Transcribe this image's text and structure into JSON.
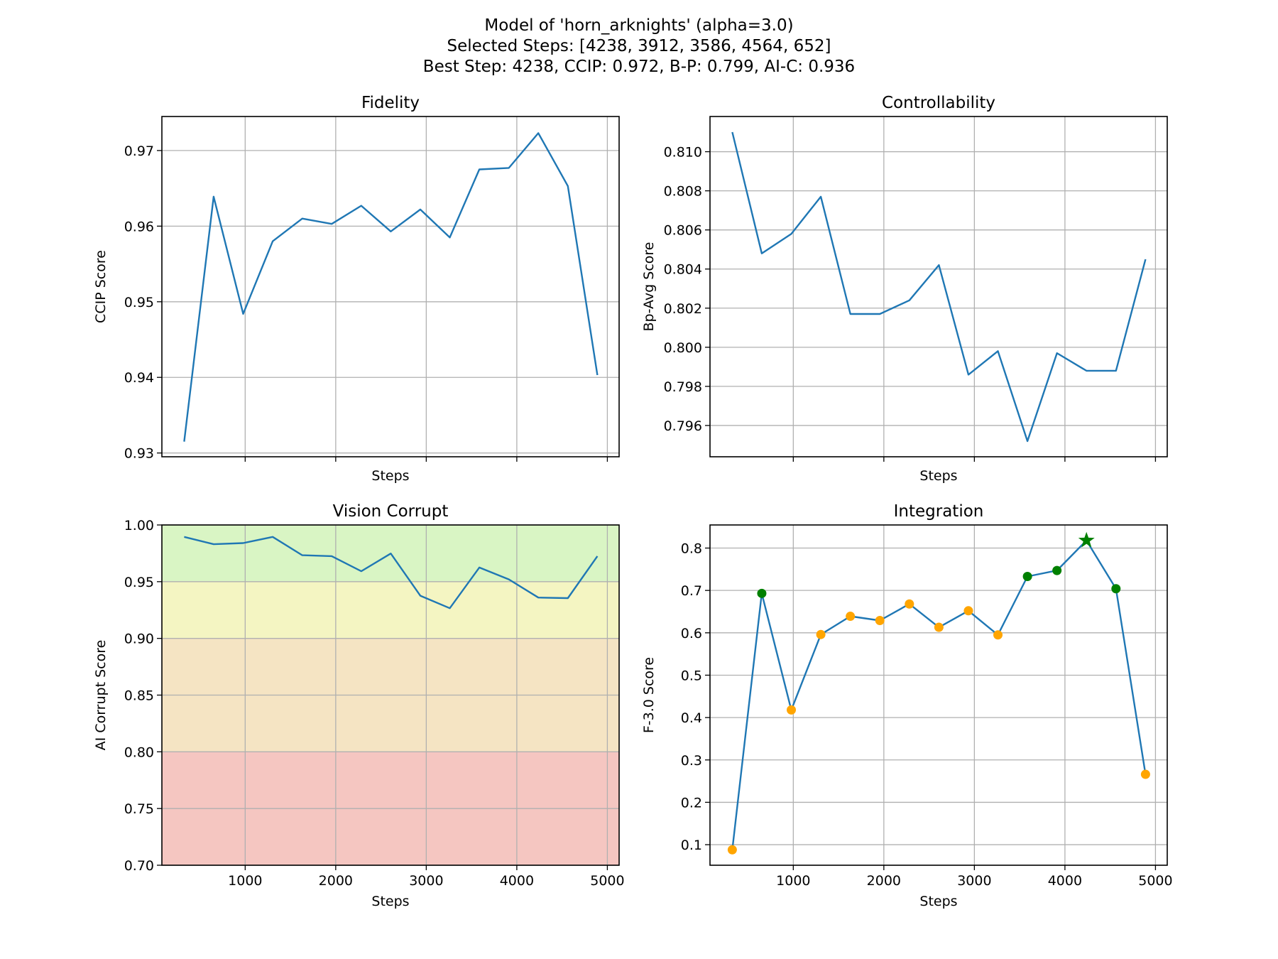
{
  "title_lines": [
    "Model of 'horn_arknights' (alpha=3.0)",
    "Selected Steps: [4238, 3912, 3586, 4564, 652]",
    "Best Step: 4238, CCIP: 0.972, B-P: 0.799, AI-C: 0.936"
  ],
  "colors": {
    "line": "#1f77b4",
    "grid": "#b0b0b0",
    "point_default": "#FFA500",
    "point_selected": "#008000",
    "best_marker": "#008000",
    "bands": [
      "#d9f5c4",
      "#f4f5c2",
      "#f5e4c3",
      "#f5c6c1"
    ]
  },
  "chart_data": [
    {
      "type": "line",
      "title": "Fidelity",
      "xlabel": "Steps",
      "ylabel": "CCIP Score",
      "x": [
        326,
        652,
        978,
        1304,
        1630,
        1956,
        2282,
        2608,
        2934,
        3260,
        3586,
        3912,
        4238,
        4564,
        4890
      ],
      "y": [
        0.9315,
        0.9639,
        0.9484,
        0.958,
        0.961,
        0.9603,
        0.9627,
        0.9593,
        0.9622,
        0.9585,
        0.9675,
        0.9677,
        0.9723,
        0.9653,
        0.9403
      ],
      "xlim": [
        80,
        5130
      ],
      "ylim": [
        0.9295,
        0.9745
      ],
      "xticks": [
        1000,
        2000,
        3000,
        4000,
        5000
      ],
      "xtick_labels_visible": false,
      "yticks": [
        0.93,
        0.94,
        0.95,
        0.96,
        0.97
      ],
      "ytick_labels": [
        "0.93",
        "0.94",
        "0.95",
        "0.96",
        "0.97"
      ],
      "grid": true
    },
    {
      "type": "line",
      "title": "Controllability",
      "xlabel": "Steps",
      "ylabel": "Bp-Avg Score",
      "x": [
        326,
        652,
        978,
        1304,
        1630,
        1956,
        2282,
        2608,
        2934,
        3260,
        3586,
        3912,
        4238,
        4564,
        4890
      ],
      "y": [
        0.811,
        0.8048,
        0.8058,
        0.8077,
        0.8017,
        0.8017,
        0.8024,
        0.8042,
        0.7986,
        0.7998,
        0.7952,
        0.7997,
        0.7988,
        0.7988,
        0.8045
      ],
      "xlim": [
        80,
        5130
      ],
      "ylim": [
        0.7944,
        0.8118
      ],
      "xticks": [
        1000,
        2000,
        3000,
        4000,
        5000
      ],
      "xtick_labels_visible": false,
      "yticks": [
        0.796,
        0.798,
        0.8,
        0.802,
        0.804,
        0.806,
        0.808,
        0.81
      ],
      "ytick_labels": [
        "0.796",
        "0.798",
        "0.800",
        "0.802",
        "0.804",
        "0.806",
        "0.808",
        "0.810"
      ],
      "grid": true
    },
    {
      "type": "area",
      "title": "Vision Corrupt",
      "xlabel": "Steps",
      "ylabel": "AI Corrupt Score",
      "x": [
        326,
        652,
        978,
        1304,
        1630,
        1956,
        2282,
        2608,
        2934,
        3260,
        3586,
        3912,
        4238,
        4564,
        4890
      ],
      "y": [
        0.9895,
        0.983,
        0.984,
        0.9895,
        0.9733,
        0.9725,
        0.9592,
        0.9748,
        0.9376,
        0.9266,
        0.9625,
        0.952,
        0.936,
        0.9355,
        0.9725
      ],
      "bands": [
        {
          "from": 0.95,
          "to": 1.0
        },
        {
          "from": 0.9,
          "to": 0.95
        },
        {
          "from": 0.8,
          "to": 0.9
        },
        {
          "from": 0.7,
          "to": 0.8
        }
      ],
      "xlim": [
        80,
        5130
      ],
      "ylim": [
        0.7,
        1.0
      ],
      "xticks": [
        1000,
        2000,
        3000,
        4000,
        5000
      ],
      "xtick_labels": [
        "1000",
        "2000",
        "3000",
        "4000",
        "5000"
      ],
      "xtick_labels_visible": true,
      "yticks": [
        0.7,
        0.75,
        0.8,
        0.85,
        0.9,
        0.95,
        1.0
      ],
      "ytick_labels": [
        "0.70",
        "0.75",
        "0.80",
        "0.85",
        "0.90",
        "0.95",
        "1.00"
      ],
      "grid": true
    },
    {
      "type": "line",
      "title": "Integration",
      "xlabel": "Steps",
      "ylabel": "F-3.0 Score",
      "x": [
        326,
        652,
        978,
        1304,
        1630,
        1956,
        2282,
        2608,
        2934,
        3260,
        3586,
        3912,
        4238,
        4564,
        4890
      ],
      "y": [
        0.088,
        0.693,
        0.418,
        0.596,
        0.639,
        0.629,
        0.668,
        0.613,
        0.652,
        0.595,
        0.733,
        0.747,
        0.818,
        0.704,
        0.266
      ],
      "selected_steps": [
        4238,
        3912,
        3586,
        4564,
        652
      ],
      "best_step": 4238,
      "xlim": [
        80,
        5130
      ],
      "ylim": [
        0.0515,
        0.8545
      ],
      "xticks": [
        1000,
        2000,
        3000,
        4000,
        5000
      ],
      "xtick_labels": [
        "1000",
        "2000",
        "3000",
        "4000",
        "5000"
      ],
      "xtick_labels_visible": true,
      "yticks": [
        0.1,
        0.2,
        0.3,
        0.4,
        0.5,
        0.6,
        0.7,
        0.8
      ],
      "ytick_labels": [
        "0.1",
        "0.2",
        "0.3",
        "0.4",
        "0.5",
        "0.6",
        "0.7",
        "0.8"
      ],
      "grid": true
    }
  ]
}
